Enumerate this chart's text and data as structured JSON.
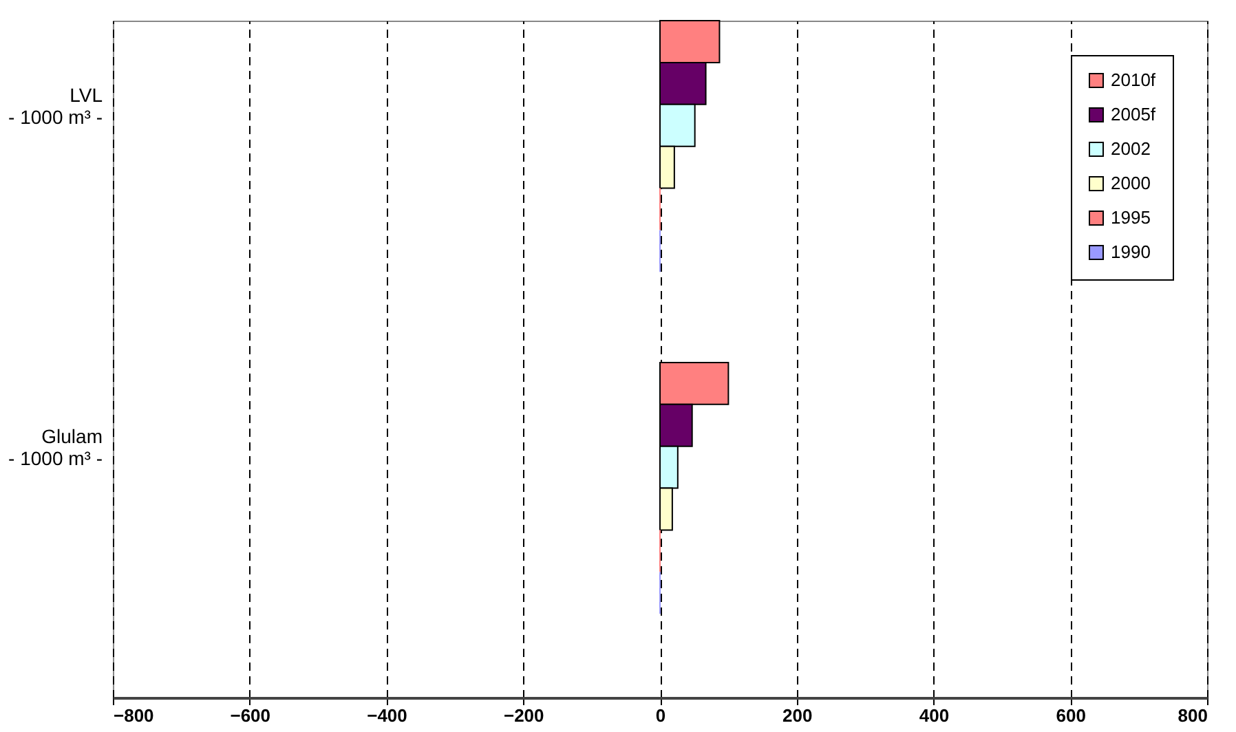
{
  "chart_data": {
    "type": "bar",
    "orientation": "horizontal",
    "categories": [
      "LVL\n- 1000 m³ -",
      "Glulam\n- 1000 m³ -"
    ],
    "series": [
      {
        "name": "2010f",
        "color": "#ff8080",
        "values": [
          87,
          100
        ]
      },
      {
        "name": "2005f",
        "color": "#660066",
        "values": [
          67,
          47
        ]
      },
      {
        "name": "2002",
        "color": "#ccffff",
        "values": [
          51,
          26
        ]
      },
      {
        "name": "2000",
        "color": "#ffffcc",
        "values": [
          21,
          18
        ]
      },
      {
        "name": "1995",
        "color": "#ff8080",
        "values": [
          0,
          0
        ]
      },
      {
        "name": "1990",
        "color": "#9999ff",
        "values": [
          0,
          0
        ]
      }
    ],
    "xlim": [
      -800,
      800
    ],
    "xticks": [
      -800,
      -600,
      -400,
      -200,
      0,
      200,
      400,
      600,
      800
    ],
    "grid": "x",
    "legend": "top right"
  }
}
